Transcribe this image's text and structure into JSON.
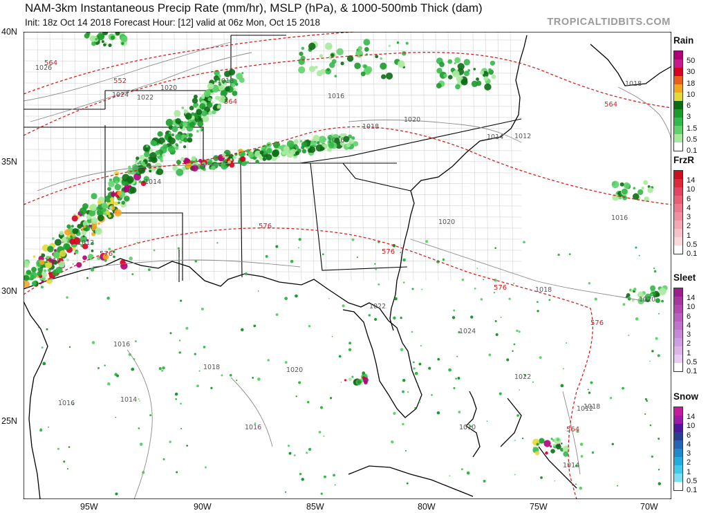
{
  "header": {
    "title": "NAM-3km Instantaneous Precip Rate (mm/hr), MSLP (hPa), & 1000-500mb Thick (dam)",
    "subtitle": "Init: 18z Oct 14 2018   Forecast Hour: [12]   valid at 06z Mon, Oct 15 2018",
    "brand": "TROPICALTIDBITS.COM"
  },
  "axes": {
    "lat_labels": [
      "40N",
      "35N",
      "30N",
      "25N"
    ],
    "lon_labels": [
      "95W",
      "90W",
      "85W",
      "80W",
      "75W",
      "70W"
    ]
  },
  "isobars": [
    "1026",
    "1024",
    "1022",
    "1020",
    "1018",
    "1016",
    "1014",
    "1012",
    "1010",
    "1020",
    "1018",
    "1016",
    "1014",
    "1012",
    "1018",
    "1016",
    "1020",
    "1018",
    "1020",
    "1022",
    "1024",
    "1022",
    "1020",
    "1018",
    "1016",
    "1016",
    "1014",
    "1016",
    "1010",
    "1012",
    "1014",
    "1018"
  ],
  "thickness_labels": [
    "552",
    "564",
    "564",
    "576",
    "576",
    "576",
    "576",
    "576",
    "564",
    "564"
  ],
  "legend": {
    "rain": {
      "title": "Rain",
      "labels": [
        "50",
        "30",
        "18",
        "10",
        "6",
        "3",
        "1.5",
        "0.5",
        "0.1"
      ],
      "colors": [
        "#b10077",
        "#c8198d",
        "#d60024",
        "#e8601c",
        "#f4a621",
        "#e4d93c",
        "#0b6b14",
        "#1c9a2a",
        "#33b84a",
        "#5fd36b",
        "#a7ea9c",
        "#ffffff"
      ]
    },
    "frzr": {
      "title": "FrzR",
      "labels": [
        "14",
        "10",
        "6",
        "4",
        "3",
        "2",
        "1",
        "0.5",
        "0.1"
      ],
      "colors": [
        "#cc0f1e",
        "#dc2a3a",
        "#e24560",
        "#e76076",
        "#ec7a8c",
        "#f090a0",
        "#f4a8b4",
        "#f8c0c8",
        "#fcd8dc",
        "#ffffff"
      ]
    },
    "sleet": {
      "title": "Sleet",
      "labels": [
        "14",
        "10",
        "6",
        "4",
        "3",
        "2",
        "1",
        "0.5",
        "0.1"
      ],
      "colors": [
        "#9b1f8d",
        "#a737a0",
        "#b04ab0",
        "#b85fbf",
        "#c074cc",
        "#c888d8",
        "#d09ce2",
        "#dcb4ea",
        "#e8ccf2",
        "#ffffff"
      ]
    },
    "snow": {
      "title": "Snow",
      "labels": [
        "14",
        "10",
        "6",
        "4",
        "3",
        "2",
        "1",
        "0.5",
        "0.1"
      ],
      "colors": [
        "#c41c9e",
        "#9b1aa8",
        "#4b189a",
        "#27408f",
        "#2465b8",
        "#1f8acb",
        "#21aede",
        "#3fcaec",
        "#7ddff4",
        "#ffffff"
      ]
    }
  }
}
